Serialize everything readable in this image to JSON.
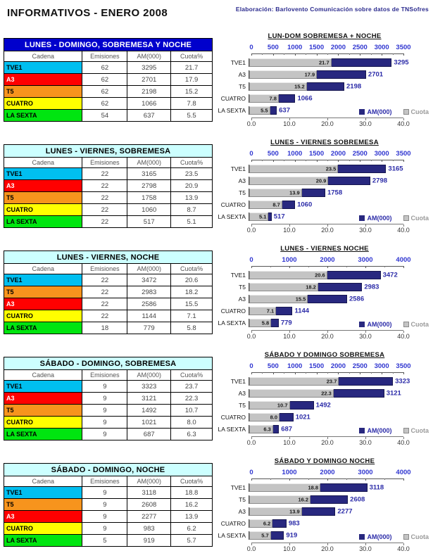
{
  "page": {
    "title": "INFORMATIVOS - ENERO 2008",
    "credit": "Elaboración: Barlovento Comunicación sobre datos de TNSofres"
  },
  "table": {
    "headers": [
      "Cadena",
      "Emisiones",
      "AM(000)",
      "Cuota%"
    ]
  },
  "legend": {
    "am_label": "AM(000)",
    "cuota_label": "Cuota"
  },
  "colors": {
    "am_bar": "#28287F",
    "cuota_bar": "#C4C4C4",
    "axis_numbers_blue": "#2F35D0",
    "am_label_navy": "#2B2BA8",
    "table1_header_bg": "#0000CC",
    "table_header_bg": "#CCFFFF",
    "credit_navy": "#2B2B8E"
  },
  "channels": {
    "TVE1": {
      "bg": "#00BFF0",
      "text": "#000000"
    },
    "A3": {
      "bg": "#FF0000",
      "text": "#FFFFFF"
    },
    "T5": {
      "bg": "#F7941D",
      "text": "#000000"
    },
    "CUATRO": {
      "bg": "#FFFF00",
      "text": "#000000"
    },
    "LA SEXTA": {
      "bg": "#00E510",
      "text": "#000000"
    }
  },
  "sections": [
    {
      "table_title": "LUNES - DOMINGO, SOBREMESA Y NOCHE",
      "header_style": "dark",
      "rows": [
        {
          "cadena": "TVE1",
          "emisiones": "62",
          "am": "3295",
          "cuota": "21.7"
        },
        {
          "cadena": "A3",
          "emisiones": "62",
          "am": "2701",
          "cuota": "17.9"
        },
        {
          "cadena": "T5",
          "emisiones": "62",
          "am": "2198",
          "cuota": "15.2"
        },
        {
          "cadena": "CUATRO",
          "emisiones": "62",
          "am": "1066",
          "cuota": "7.8"
        },
        {
          "cadena": "LA SEXTA",
          "emisiones": "54",
          "am": "637",
          "cuota": "5.5"
        }
      ]
    },
    {
      "table_title": "LUNES - VIERNES, SOBREMESA",
      "header_style": "light",
      "rows": [
        {
          "cadena": "TVE1",
          "emisiones": "22",
          "am": "3165",
          "cuota": "23.5"
        },
        {
          "cadena": "A3",
          "emisiones": "22",
          "am": "2798",
          "cuota": "20.9"
        },
        {
          "cadena": "T5",
          "emisiones": "22",
          "am": "1758",
          "cuota": "13.9"
        },
        {
          "cadena": "CUATRO",
          "emisiones": "22",
          "am": "1060",
          "cuota": "8.7"
        },
        {
          "cadena": "LA SEXTA",
          "emisiones": "22",
          "am": "517",
          "cuota": "5.1"
        }
      ]
    },
    {
      "table_title": "LUNES - VIERNES, NOCHE",
      "header_style": "light",
      "rows": [
        {
          "cadena": "TVE1",
          "emisiones": "22",
          "am": "3472",
          "cuota": "20.6"
        },
        {
          "cadena": "T5",
          "emisiones": "22",
          "am": "2983",
          "cuota": "18.2"
        },
        {
          "cadena": "A3",
          "emisiones": "22",
          "am": "2586",
          "cuota": "15.5"
        },
        {
          "cadena": "CUATRO",
          "emisiones": "22",
          "am": "1144",
          "cuota": "7.1"
        },
        {
          "cadena": "LA SEXTA",
          "emisiones": "18",
          "am": "779",
          "cuota": "5.8"
        }
      ]
    },
    {
      "table_title": "SÁBADO - DOMINGO, SOBREMESA",
      "header_style": "light",
      "rows": [
        {
          "cadena": "TVE1",
          "emisiones": "9",
          "am": "3323",
          "cuota": "23.7"
        },
        {
          "cadena": "A3",
          "emisiones": "9",
          "am": "3121",
          "cuota": "22.3"
        },
        {
          "cadena": "T5",
          "emisiones": "9",
          "am": "1492",
          "cuota": "10.7"
        },
        {
          "cadena": "CUATRO",
          "emisiones": "9",
          "am": "1021",
          "cuota": "8.0"
        },
        {
          "cadena": "LA SEXTA",
          "emisiones": "9",
          "am": "687",
          "cuota": "6.3"
        }
      ]
    },
    {
      "table_title": "SÁBADO - DOMINGO, NOCHE",
      "header_style": "light",
      "rows": [
        {
          "cadena": "TVE1",
          "emisiones": "9",
          "am": "3118",
          "cuota": "18.8"
        },
        {
          "cadena": "T5",
          "emisiones": "9",
          "am": "2608",
          "cuota": "16.2"
        },
        {
          "cadena": "A3",
          "emisiones": "9",
          "am": "2277",
          "cuota": "13.9"
        },
        {
          "cadena": "CUATRO",
          "emisiones": "9",
          "am": "983",
          "cuota": "6.2"
        },
        {
          "cadena": "LA SEXTA",
          "emisiones": "5",
          "am": "919",
          "cuota": "5.7"
        }
      ]
    }
  ],
  "chart_data": [
    {
      "type": "bar",
      "orientation": "horizontal",
      "title": "LUN-DOM SOBREMESA + NOCHE",
      "categories": [
        "TVE1",
        "A3",
        "T5",
        "CUATRO",
        "LA SEXTA"
      ],
      "series": [
        {
          "name": "AM(000)",
          "axis": "top",
          "color": "#28287F",
          "values": [
            3295,
            2701,
            2198,
            1066,
            637
          ]
        },
        {
          "name": "Cuota",
          "axis": "bottom",
          "color": "#C4C4C4",
          "values": [
            21.7,
            17.9,
            15.2,
            7.8,
            5.5
          ]
        }
      ],
      "top_axis": {
        "min": 0,
        "max": 3500,
        "step": 500
      },
      "bottom_axis": {
        "min": 0,
        "max": 40,
        "step": 10
      },
      "legend_position": "bottom-right",
      "grid": false
    },
    {
      "type": "bar",
      "orientation": "horizontal",
      "title": "LUNES - VIERNES SOBREMESA",
      "categories": [
        "TVE1",
        "A3",
        "T5",
        "CUATRO",
        "LA SEXTA"
      ],
      "series": [
        {
          "name": "AM(000)",
          "axis": "top",
          "color": "#28287F",
          "values": [
            3165,
            2798,
            1758,
            1060,
            517
          ]
        },
        {
          "name": "Cuota",
          "axis": "bottom",
          "color": "#C4C4C4",
          "values": [
            23.5,
            20.9,
            13.9,
            8.7,
            5.1
          ]
        }
      ],
      "top_axis": {
        "min": 0,
        "max": 3500,
        "step": 500
      },
      "bottom_axis": {
        "min": 0,
        "max": 40,
        "step": 10
      },
      "legend_position": "bottom-right",
      "grid": false
    },
    {
      "type": "bar",
      "orientation": "horizontal",
      "title": "LUNES - VIERNES  NOCHE",
      "categories": [
        "TVE1",
        "T5",
        "A3",
        "CUATRO",
        "LA SEXTA"
      ],
      "series": [
        {
          "name": "AM(000)",
          "axis": "top",
          "color": "#28287F",
          "values": [
            3472,
            2983,
            2586,
            1144,
            779
          ]
        },
        {
          "name": "Cuota",
          "axis": "bottom",
          "color": "#C4C4C4",
          "values": [
            20.6,
            18.2,
            15.5,
            7.1,
            5.8
          ]
        }
      ],
      "top_axis": {
        "min": 0,
        "max": 4000,
        "step": 1000
      },
      "bottom_axis": {
        "min": 0,
        "max": 40,
        "step": 10
      },
      "legend_position": "bottom-right",
      "grid": false
    },
    {
      "type": "bar",
      "orientation": "horizontal",
      "title": "SÁBADO Y DOMINGO SOBREMESA",
      "categories": [
        "TVE1",
        "A3",
        "T5",
        "CUATRO",
        "LA SEXTA"
      ],
      "series": [
        {
          "name": "AM(000)",
          "axis": "top",
          "color": "#28287F",
          "values": [
            3323,
            3121,
            1492,
            1021,
            687
          ]
        },
        {
          "name": "Cuota",
          "axis": "bottom",
          "color": "#C4C4C4",
          "values": [
            23.7,
            22.3,
            10.7,
            8.0,
            6.3
          ]
        }
      ],
      "top_axis": {
        "min": 0,
        "max": 3500,
        "step": 500
      },
      "bottom_axis": {
        "min": 0,
        "max": 40,
        "step": 10
      },
      "legend_position": "bottom-right",
      "grid": false
    },
    {
      "type": "bar",
      "orientation": "horizontal",
      "title": "SÁBADO Y DOMINGO  NOCHE",
      "categories": [
        "TVE1",
        "T5",
        "A3",
        "CUATRO",
        "LA SEXTA"
      ],
      "series": [
        {
          "name": "AM(000)",
          "axis": "top",
          "color": "#28287F",
          "values": [
            3118,
            2608,
            2277,
            983,
            919
          ]
        },
        {
          "name": "Cuota",
          "axis": "bottom",
          "color": "#C4C4C4",
          "values": [
            18.8,
            16.2,
            13.9,
            6.2,
            5.7
          ]
        }
      ],
      "top_axis": {
        "min": 0,
        "max": 4000,
        "step": 1000
      },
      "bottom_axis": {
        "min": 0,
        "max": 40,
        "step": 10
      },
      "legend_position": "bottom-right",
      "grid": false
    }
  ]
}
